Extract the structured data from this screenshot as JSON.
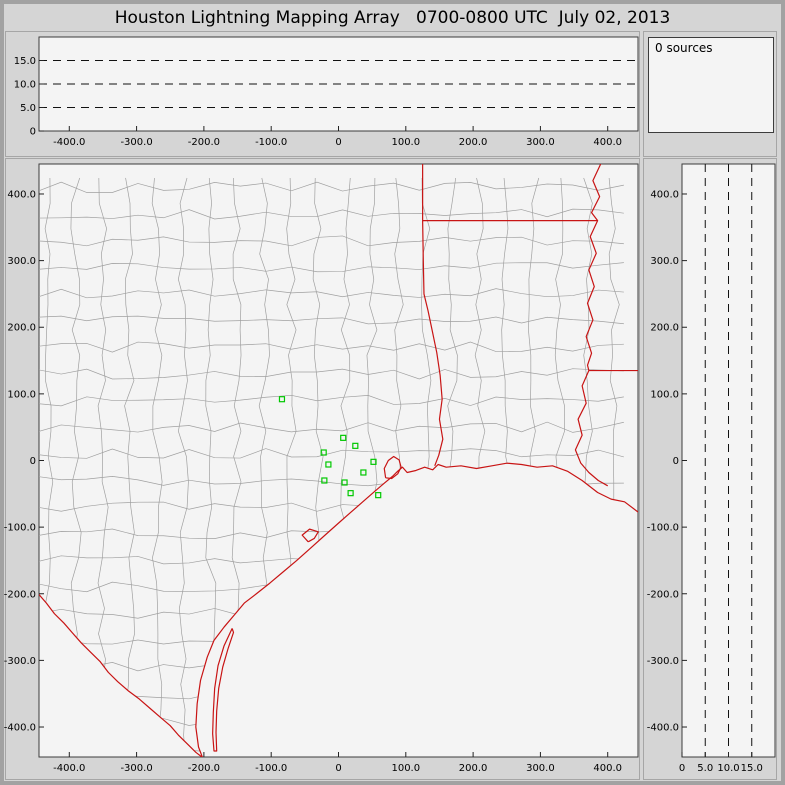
{
  "title": "Houston Lightning Mapping Array   0700-0800 UTC  July 02, 2013",
  "sources_panel": {
    "label": "0 sources"
  },
  "colors": {
    "window_bg": "#d5d5d5",
    "plot_bg": "#f4f4f4",
    "plot_border": "#3c3c3c",
    "county_line": "#a0a0a0",
    "state_line": "#c81414",
    "station": "#00c800",
    "dash_line": "#111111",
    "text": "#000000"
  },
  "chart_data": [
    {
      "name": "altitude-vs-east-west",
      "type": "scatter",
      "xlim": [
        -445,
        445
      ],
      "ylim": [
        0,
        20
      ],
      "x_ticks": [
        -400,
        -300,
        -200,
        -100,
        0,
        100,
        200,
        300,
        400
      ],
      "x_tick_labels": [
        "-400.0",
        "-300.0",
        "-200.0",
        "-100.0",
        "0",
        "100.0",
        "200.0",
        "300.0",
        "400.0"
      ],
      "y_ticks": [
        0,
        5,
        10,
        15
      ],
      "y_tick_labels": [
        "0",
        "5.0",
        "10.0",
        "15.0"
      ],
      "dashed_y_gridlines": [
        5,
        10,
        15
      ],
      "points": []
    },
    {
      "name": "plan-view-map",
      "type": "scatter",
      "xlim": [
        -445,
        445
      ],
      "ylim": [
        -445,
        445
      ],
      "x_ticks": [
        -400,
        -300,
        -200,
        -100,
        0,
        100,
        200,
        300,
        400
      ],
      "x_tick_labels": [
        "-400.0",
        "-300.0",
        "-200.0",
        "-100.0",
        "0",
        "100.0",
        "200.0",
        "300.0",
        "400.0"
      ],
      "y_ticks": [
        400,
        300,
        200,
        100,
        0,
        -100,
        -200,
        -300,
        -400
      ],
      "y_tick_labels": [
        "400.0",
        "300.0",
        "200.0",
        "100.0",
        "0",
        "-100.0",
        "-200.0",
        "-300.0",
        "-400.0"
      ],
      "stations_km": [
        [
          -84,
          92
        ],
        [
          7,
          34
        ],
        [
          25,
          22
        ],
        [
          -22,
          12
        ],
        [
          -15,
          -6
        ],
        [
          52,
          -2
        ],
        [
          37,
          -18
        ],
        [
          -21,
          -30
        ],
        [
          9,
          -33
        ],
        [
          18,
          -49
        ],
        [
          59,
          -52
        ]
      ],
      "map_layers": {
        "coastline": [
          [
            446,
            -78
          ],
          [
            425,
            -62
          ],
          [
            405,
            -58
          ],
          [
            385,
            -48
          ],
          [
            362,
            -30
          ],
          [
            340,
            -16
          ],
          [
            318,
            -8
          ],
          [
            295,
            -10
          ],
          [
            272,
            -6
          ],
          [
            250,
            -4
          ],
          [
            228,
            -8
          ],
          [
            205,
            -12
          ],
          [
            182,
            -8
          ],
          [
            160,
            -10
          ],
          [
            148,
            -6
          ],
          [
            140,
            -14
          ],
          [
            128,
            -10
          ],
          [
            115,
            -15
          ],
          [
            102,
            -18
          ],
          [
            95,
            -10
          ],
          [
            88,
            -16
          ],
          [
            80,
            -24
          ],
          [
            68,
            -34
          ],
          [
            52,
            -48
          ],
          [
            35,
            -63
          ],
          [
            18,
            -78
          ],
          [
            0,
            -94
          ],
          [
            -20,
            -112
          ],
          [
            -42,
            -132
          ],
          [
            -62,
            -150
          ],
          [
            -82,
            -167
          ],
          [
            -102,
            -184
          ],
          [
            -122,
            -200
          ],
          [
            -140,
            -214
          ],
          [
            -155,
            -232
          ],
          [
            -170,
            -250
          ],
          [
            -185,
            -270
          ],
          [
            -195,
            -295
          ],
          [
            -205,
            -330
          ],
          [
            -210,
            -365
          ],
          [
            -212,
            -400
          ],
          [
            -208,
            -430
          ],
          [
            -202,
            -446
          ]
        ],
        "rio_grande": [
          [
            -446,
            -200
          ],
          [
            -434,
            -214
          ],
          [
            -422,
            -230
          ],
          [
            -408,
            -244
          ],
          [
            -396,
            -258
          ],
          [
            -382,
            -274
          ],
          [
            -368,
            -288
          ],
          [
            -354,
            -302
          ],
          [
            -342,
            -318
          ],
          [
            -328,
            -332
          ],
          [
            -312,
            -346
          ],
          [
            -296,
            -358
          ],
          [
            -280,
            -372
          ],
          [
            -264,
            -386
          ],
          [
            -250,
            -398
          ],
          [
            -238,
            -412
          ],
          [
            -224,
            -426
          ],
          [
            -212,
            -438
          ],
          [
            -203,
            -445
          ]
        ],
        "tx_east_border": [
          [
            125,
            446
          ],
          [
            125,
            360
          ],
          [
            126,
            300
          ],
          [
            127,
            250
          ],
          [
            133,
            225
          ],
          [
            139,
            196
          ],
          [
            146,
            162
          ],
          [
            151,
            128
          ],
          [
            154,
            92
          ],
          [
            150,
            62
          ],
          [
            155,
            32
          ],
          [
            149,
            8
          ],
          [
            143,
            -8
          ]
        ],
        "ar_la_border_33n": [
          [
            125,
            360
          ],
          [
            385,
            360
          ]
        ],
        "la_ms_border_31n": [
          [
            372,
            135
          ],
          [
            446,
            135
          ]
        ],
        "mississippi_river": [
          [
            390,
            446
          ],
          [
            378,
            420
          ],
          [
            388,
            396
          ],
          [
            376,
            372
          ],
          [
            385,
            360
          ],
          [
            374,
            336
          ],
          [
            383,
            311
          ],
          [
            372,
            286
          ],
          [
            380,
            261
          ],
          [
            370,
            236
          ],
          [
            378,
            211
          ],
          [
            368,
            186
          ],
          [
            376,
            161
          ],
          [
            370,
            143
          ],
          [
            372,
            135
          ],
          [
            362,
            112
          ],
          [
            368,
            86
          ],
          [
            356,
            62
          ],
          [
            362,
            38
          ],
          [
            352,
            16
          ],
          [
            360,
            -4
          ],
          [
            372,
            -18
          ],
          [
            386,
            -30
          ],
          [
            400,
            -38
          ]
        ],
        "barrier_island": [
          [
            -158,
            -252
          ],
          [
            -170,
            -278
          ],
          [
            -179,
            -308
          ],
          [
            -184,
            -342
          ],
          [
            -186,
            -378
          ],
          [
            -187,
            -410
          ],
          [
            -185,
            -436
          ],
          [
            -181,
            -436
          ],
          [
            -182,
            -408
          ],
          [
            -181,
            -376
          ],
          [
            -178,
            -342
          ],
          [
            -172,
            -310
          ],
          [
            -164,
            -282
          ],
          [
            -156,
            -258
          ],
          [
            -158,
            -252
          ]
        ],
        "galveston_bay": [
          [
            70,
            -26
          ],
          [
            68,
            -12
          ],
          [
            74,
            0
          ],
          [
            82,
            6
          ],
          [
            90,
            1
          ],
          [
            93,
            -10
          ],
          [
            88,
            -20
          ],
          [
            79,
            -27
          ],
          [
            70,
            -26
          ]
        ],
        "matagorda_bay": [
          [
            -45,
            -122
          ],
          [
            -54,
            -112
          ],
          [
            -43,
            -103
          ],
          [
            -30,
            -107
          ],
          [
            -36,
            -117
          ],
          [
            -45,
            -122
          ]
        ]
      },
      "county_grid": {
        "x_spacing_km": 40,
        "y_spacing_km": 40,
        "jitter_km": 16,
        "seed": 11
      }
    },
    {
      "name": "altitude-vs-north-south",
      "type": "scatter",
      "xlim": [
        0,
        20
      ],
      "ylim": [
        -445,
        445
      ],
      "x_ticks": [
        0,
        5,
        10,
        15
      ],
      "x_tick_labels": [
        "0",
        "5.0",
        "10.0",
        "15.0"
      ],
      "y_ticks": [
        400,
        300,
        200,
        100,
        0,
        -100,
        -200,
        -300,
        -400
      ],
      "y_tick_labels": [
        "400.0",
        "300.0",
        "200.0",
        "100.0",
        "0",
        "-100.0",
        "-200.0",
        "-300.0",
        "-400.0"
      ],
      "dashed_x_gridlines": [
        5,
        10,
        15
      ],
      "points": []
    }
  ]
}
